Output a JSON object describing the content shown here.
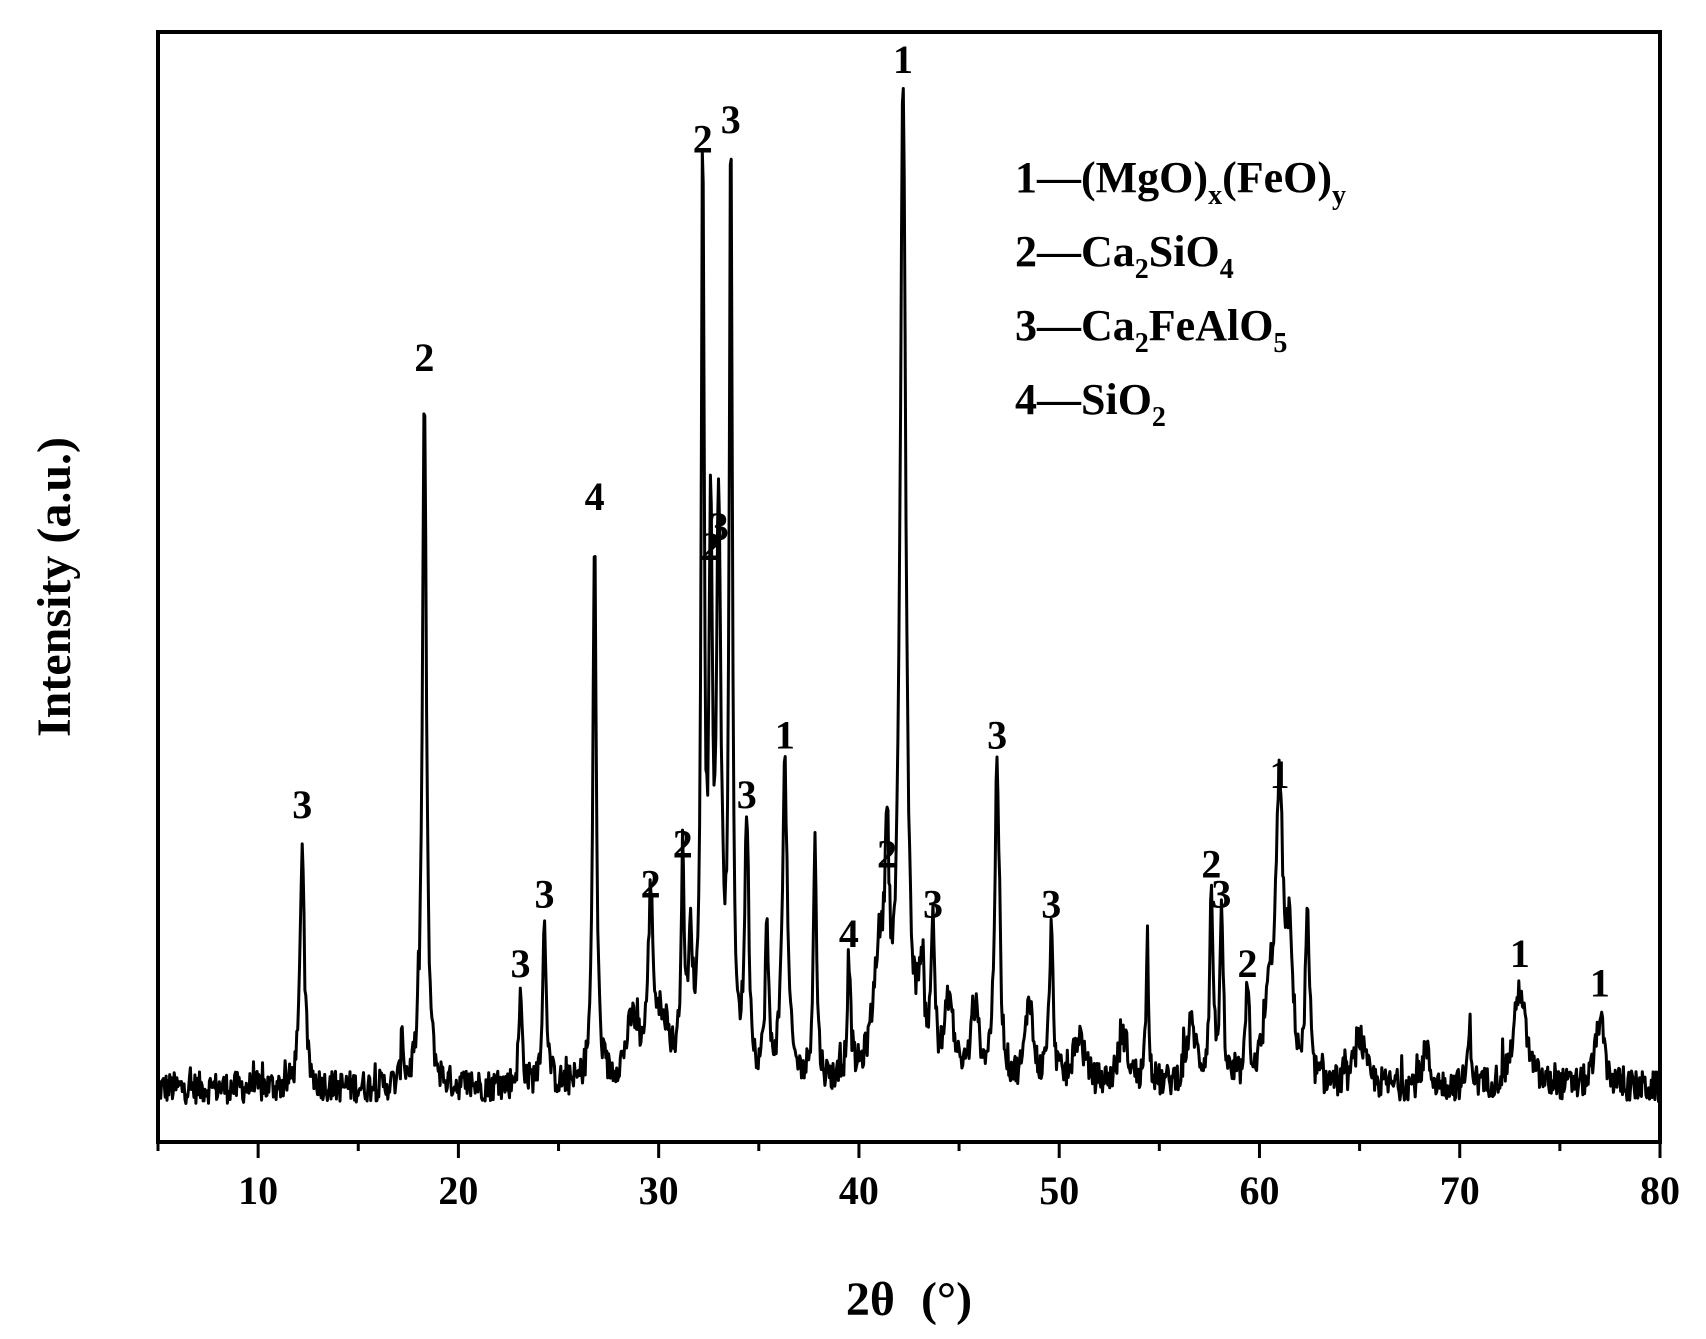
{
  "chart_data": {
    "type": "line",
    "xlabel": "2θ",
    "xlabel_unit": "(°)",
    "ylabel": "Intensity (a.u.)",
    "xlim": [
      5,
      80
    ],
    "x_ticks": [
      10,
      20,
      30,
      40,
      50,
      60,
      70,
      80
    ],
    "y_ticks_visible": false,
    "grid": false,
    "legend_position": "top-right",
    "line_color": "#000000",
    "legend": [
      {
        "id": "1",
        "text": "1—(MgO)x(FeO)y",
        "parts": [
          {
            "t": "1—(MgO)"
          },
          {
            "t": "x",
            "sub": true
          },
          {
            "t": "(FeO)"
          },
          {
            "t": "y",
            "sub": true
          }
        ]
      },
      {
        "id": "2",
        "text": "2—Ca2SiO4",
        "parts": [
          {
            "t": "2—Ca"
          },
          {
            "t": "2",
            "sub": true
          },
          {
            "t": "SiO"
          },
          {
            "t": "4",
            "sub": true
          }
        ]
      },
      {
        "id": "3",
        "text": "3—Ca2FeAlO5",
        "parts": [
          {
            "t": "3—Ca"
          },
          {
            "t": "2",
            "sub": true
          },
          {
            "t": "FeAlO"
          },
          {
            "t": "5",
            "sub": true
          }
        ]
      },
      {
        "id": "4",
        "text": "4—SiO2",
        "parts": [
          {
            "t": "4—SiO"
          },
          {
            "t": "2",
            "sub": true
          }
        ]
      }
    ],
    "baseline": 3,
    "peaks": [
      {
        "x": 12.2,
        "y": 25,
        "w": 0.12,
        "label": "3"
      },
      {
        "x": 17.2,
        "y": 6,
        "w": 0.06,
        "label": ""
      },
      {
        "x": 18.3,
        "y": 70,
        "w": 0.12,
        "label": "2"
      },
      {
        "x": 23.1,
        "y": 9,
        "w": 0.1,
        "label": "3"
      },
      {
        "x": 24.3,
        "y": 16,
        "w": 0.12,
        "label": "3"
      },
      {
        "x": 26.8,
        "y": 56,
        "w": 0.1,
        "label": "4"
      },
      {
        "x": 28.7,
        "y": 6,
        "w": 0.4,
        "label": ""
      },
      {
        "x": 29.6,
        "y": 17,
        "w": 0.15,
        "label": "2"
      },
      {
        "x": 30.2,
        "y": 6,
        "w": 0.4,
        "label": ""
      },
      {
        "x": 31.2,
        "y": 21,
        "w": 0.1,
        "label": "2"
      },
      {
        "x": 31.6,
        "y": 12,
        "w": 0.12,
        "label": ""
      },
      {
        "x": 32.2,
        "y": 92,
        "w": 0.09,
        "label": "2"
      },
      {
        "x": 32.6,
        "y": 51,
        "w": 0.1,
        "label": "2"
      },
      {
        "x": 33.0,
        "y": 53,
        "w": 0.14,
        "label": "3"
      },
      {
        "x": 33.6,
        "y": 94,
        "w": 0.09,
        "label": "3"
      },
      {
        "x": 34.4,
        "y": 26,
        "w": 0.12,
        "label": "3"
      },
      {
        "x": 35.4,
        "y": 15,
        "w": 0.1,
        "label": ""
      },
      {
        "x": 36.3,
        "y": 32,
        "w": 0.15,
        "label": "1"
      },
      {
        "x": 37.8,
        "y": 24,
        "w": 0.1,
        "label": ""
      },
      {
        "x": 39.5,
        "y": 12,
        "w": 0.1,
        "label": "4"
      },
      {
        "x": 41.0,
        "y": 12,
        "w": 0.35,
        "label": ""
      },
      {
        "x": 41.4,
        "y": 20,
        "w": 0.12,
        "label": "2"
      },
      {
        "x": 42.2,
        "y": 100,
        "w": 0.17,
        "label": "1"
      },
      {
        "x": 43.1,
        "y": 9,
        "w": 0.2,
        "label": ""
      },
      {
        "x": 43.7,
        "y": 15,
        "w": 0.1,
        "label": "3"
      },
      {
        "x": 44.5,
        "y": 8,
        "w": 0.25,
        "label": ""
      },
      {
        "x": 45.8,
        "y": 7,
        "w": 0.25,
        "label": ""
      },
      {
        "x": 46.9,
        "y": 32,
        "w": 0.14,
        "label": "3"
      },
      {
        "x": 48.5,
        "y": 9,
        "w": 0.2,
        "label": ""
      },
      {
        "x": 49.6,
        "y": 15,
        "w": 0.12,
        "label": "3"
      },
      {
        "x": 51.0,
        "y": 5,
        "w": 0.3,
        "label": ""
      },
      {
        "x": 53.2,
        "y": 5,
        "w": 0.3,
        "label": ""
      },
      {
        "x": 54.4,
        "y": 15,
        "w": 0.08,
        "label": ""
      },
      {
        "x": 56.6,
        "y": 6,
        "w": 0.3,
        "label": ""
      },
      {
        "x": 57.6,
        "y": 19,
        "w": 0.1,
        "label": "2"
      },
      {
        "x": 58.1,
        "y": 16,
        "w": 0.1,
        "label": "3"
      },
      {
        "x": 59.4,
        "y": 9,
        "w": 0.1,
        "label": "2"
      },
      {
        "x": 60.5,
        "y": 7,
        "w": 0.3,
        "label": ""
      },
      {
        "x": 61.0,
        "y": 28,
        "w": 0.22,
        "label": "1"
      },
      {
        "x": 61.5,
        "y": 12,
        "w": 0.2,
        "label": ""
      },
      {
        "x": 62.4,
        "y": 17,
        "w": 0.1,
        "label": ""
      },
      {
        "x": 65.0,
        "y": 5,
        "w": 0.3,
        "label": ""
      },
      {
        "x": 68.3,
        "y": 4,
        "w": 0.2,
        "label": ""
      },
      {
        "x": 70.5,
        "y": 6,
        "w": 0.1,
        "label": ""
      },
      {
        "x": 73.0,
        "y": 10,
        "w": 0.35,
        "label": "1"
      },
      {
        "x": 77.0,
        "y": 7,
        "w": 0.25,
        "label": "1"
      }
    ]
  }
}
